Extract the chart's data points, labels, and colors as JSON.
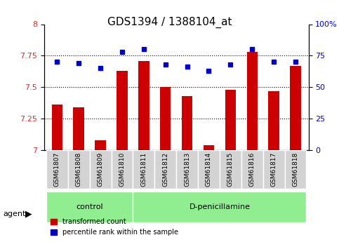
{
  "title": "GDS1394 / 1388104_at",
  "samples": [
    "GSM61807",
    "GSM61808",
    "GSM61809",
    "GSM61810",
    "GSM61811",
    "GSM61812",
    "GSM61813",
    "GSM61814",
    "GSM61815",
    "GSM61816",
    "GSM61817",
    "GSM61818"
  ],
  "transformed_count": [
    7.36,
    7.34,
    7.08,
    7.63,
    7.71,
    7.5,
    7.43,
    7.04,
    7.48,
    7.78,
    7.47,
    7.67
  ],
  "percentile_rank": [
    70,
    69,
    65,
    78,
    80,
    68,
    66,
    63,
    68,
    80,
    70,
    70
  ],
  "bar_color": "#cc0000",
  "dot_color": "#0000cc",
  "ylim_left": [
    7.0,
    8.0
  ],
  "ylim_right": [
    0,
    100
  ],
  "yticks_left": [
    7.0,
    7.25,
    7.5,
    7.75,
    8.0
  ],
  "yticks_right": [
    0,
    25,
    50,
    75,
    100
  ],
  "ytick_labels_left": [
    "7",
    "7.25",
    "7.5",
    "7.75",
    "8"
  ],
  "ytick_labels_right": [
    "0",
    "25",
    "50",
    "75",
    "100%"
  ],
  "dotted_lines": [
    7.25,
    7.5,
    7.75
  ],
  "control_group": [
    0,
    1,
    2,
    3
  ],
  "treatment_group": [
    4,
    5,
    6,
    7,
    8,
    9,
    10,
    11
  ],
  "control_label": "control",
  "treatment_label": "D-penicillamine",
  "agent_label": "agent",
  "legend_bar_label": "transformed count",
  "legend_dot_label": "percentile rank within the sample",
  "tick_label_color_left": "#cc3333",
  "tick_label_color_right": "#0000cc",
  "control_bg": "#90ee90",
  "treatment_bg": "#90ee90",
  "sample_box_bg": "#d3d3d3",
  "plot_bg": "#ffffff"
}
